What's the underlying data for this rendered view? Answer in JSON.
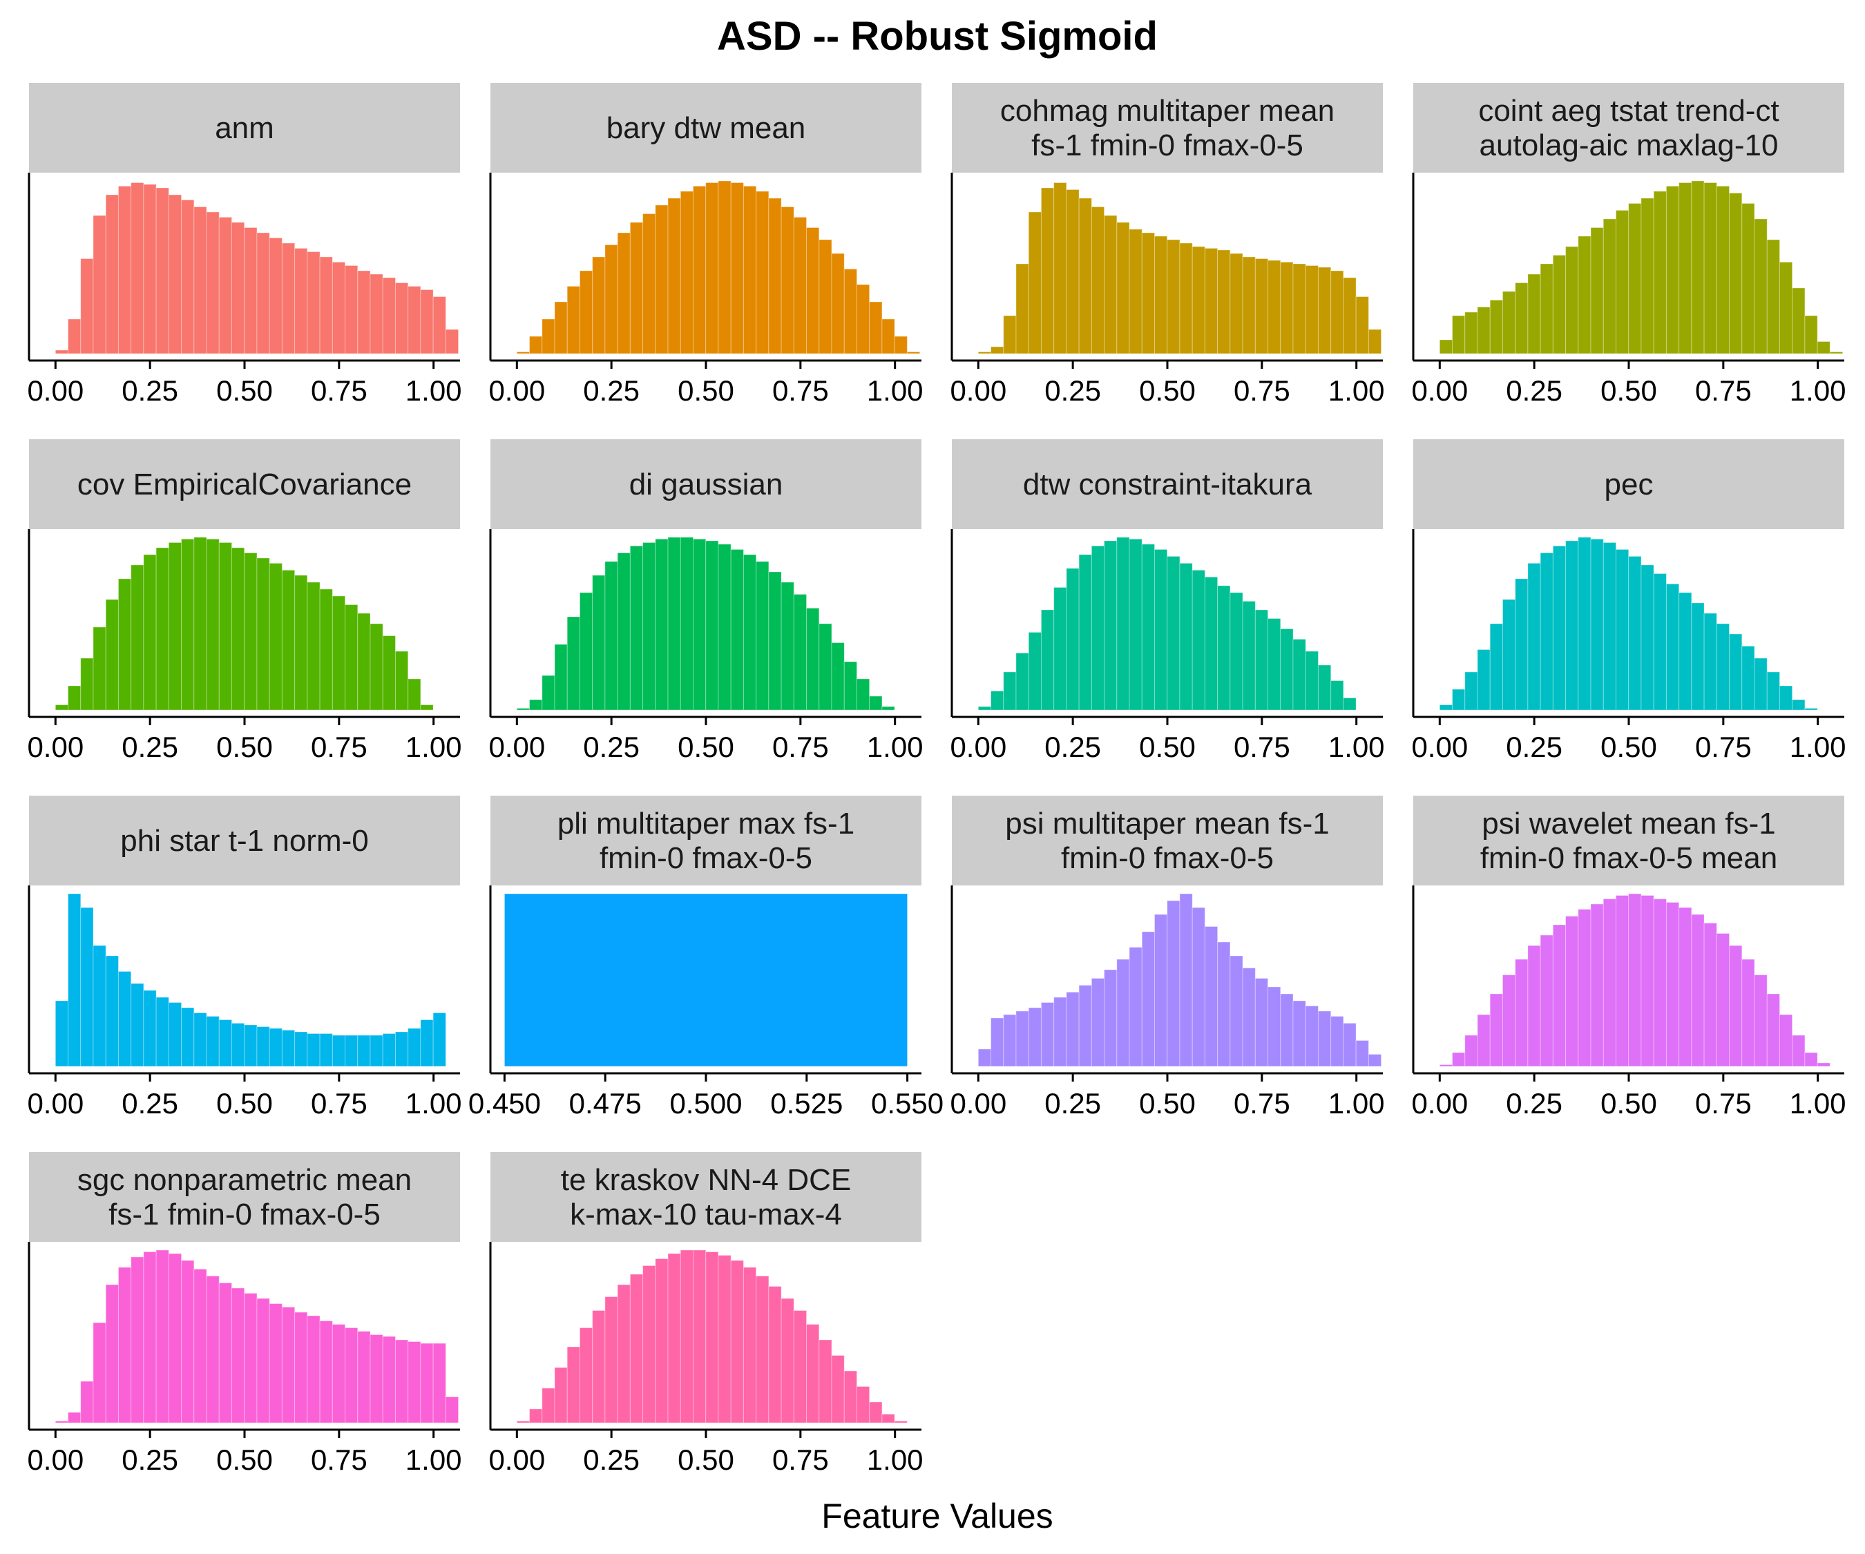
{
  "chart_data": {
    "type": "bar",
    "title": "ASD -- Robust Sigmoid",
    "xlabel": "Feature Values",
    "ylabel": "",
    "panels": [
      {
        "label_lines": [
          "anm"
        ],
        "color": "#F8766D",
        "xlim": [
          -0.07,
          1.07
        ],
        "ticks": [
          "0.00",
          "0.25",
          "0.50",
          "0.75",
          "1.00"
        ],
        "tick_values": [
          0,
          0.25,
          0.5,
          0.75,
          1
        ],
        "bin_start": 0.0,
        "bin_width": 0.0333,
        "values": [
          0.02,
          0.2,
          0.55,
          0.8,
          0.92,
          0.97,
          0.99,
          0.98,
          0.96,
          0.92,
          0.89,
          0.85,
          0.82,
          0.79,
          0.76,
          0.73,
          0.7,
          0.67,
          0.64,
          0.61,
          0.59,
          0.56,
          0.53,
          0.51,
          0.48,
          0.46,
          0.44,
          0.41,
          0.39,
          0.37,
          0.33,
          0.14
        ]
      },
      {
        "label_lines": [
          "bary dtw mean"
        ],
        "color": "#E38900",
        "xlim": [
          -0.07,
          1.07
        ],
        "ticks": [
          "0.00",
          "0.25",
          "0.50",
          "0.75",
          "1.00"
        ],
        "tick_values": [
          0,
          0.25,
          0.5,
          0.75,
          1
        ],
        "bin_start": 0.0,
        "bin_width": 0.0333,
        "values": [
          0.01,
          0.1,
          0.2,
          0.3,
          0.39,
          0.48,
          0.56,
          0.63,
          0.7,
          0.76,
          0.81,
          0.86,
          0.9,
          0.94,
          0.97,
          0.99,
          1.0,
          0.99,
          0.97,
          0.94,
          0.9,
          0.85,
          0.79,
          0.73,
          0.66,
          0.58,
          0.49,
          0.4,
          0.3,
          0.2,
          0.1,
          0.01
        ]
      },
      {
        "label_lines": [
          "cohmag multitaper mean",
          "fs-1 fmin-0 fmax-0-5"
        ],
        "color": "#C49A00",
        "xlim": [
          -0.07,
          1.07
        ],
        "ticks": [
          "0.00",
          "0.25",
          "0.50",
          "0.75",
          "1.00"
        ],
        "tick_values": [
          0,
          0.25,
          0.5,
          0.75,
          1
        ],
        "bin_start": 0.0,
        "bin_width": 0.0333,
        "values": [
          0.01,
          0.04,
          0.22,
          0.52,
          0.82,
          0.96,
          0.99,
          0.95,
          0.9,
          0.85,
          0.8,
          0.76,
          0.72,
          0.7,
          0.68,
          0.66,
          0.64,
          0.62,
          0.61,
          0.6,
          0.58,
          0.56,
          0.55,
          0.54,
          0.53,
          0.52,
          0.51,
          0.5,
          0.48,
          0.44,
          0.33,
          0.14
        ]
      },
      {
        "label_lines": [
          "coint aeg tstat trend-ct",
          "autolag-aic maxlag-10"
        ],
        "color": "#99A800",
        "xlim": [
          -0.07,
          1.07
        ],
        "ticks": [
          "0.00",
          "0.25",
          "0.50",
          "0.75",
          "1.00"
        ],
        "tick_values": [
          0,
          0.25,
          0.5,
          0.75,
          1
        ],
        "bin_start": 0.0,
        "bin_width": 0.0333,
        "values": [
          0.08,
          0.22,
          0.24,
          0.27,
          0.31,
          0.36,
          0.41,
          0.46,
          0.52,
          0.57,
          0.62,
          0.68,
          0.73,
          0.78,
          0.83,
          0.87,
          0.9,
          0.94,
          0.97,
          0.99,
          1.0,
          0.99,
          0.97,
          0.93,
          0.87,
          0.78,
          0.66,
          0.53,
          0.38,
          0.22,
          0.07,
          0.01
        ]
      },
      {
        "label_lines": [
          "cov EmpiricalCovariance"
        ],
        "color": "#53B400",
        "xlim": [
          -0.07,
          1.07
        ],
        "ticks": [
          "0.00",
          "0.25",
          "0.50",
          "0.75",
          "1.00"
        ],
        "tick_values": [
          0,
          0.25,
          0.5,
          0.75,
          1
        ],
        "bin_start": 0.0,
        "bin_width": 0.0333,
        "values": [
          0.03,
          0.14,
          0.3,
          0.48,
          0.64,
          0.76,
          0.84,
          0.9,
          0.94,
          0.97,
          0.99,
          1.0,
          0.99,
          0.97,
          0.94,
          0.91,
          0.88,
          0.85,
          0.81,
          0.78,
          0.74,
          0.7,
          0.66,
          0.61,
          0.56,
          0.5,
          0.43,
          0.34,
          0.18,
          0.03
        ]
      },
      {
        "label_lines": [
          "di gaussian"
        ],
        "color": "#00BC56",
        "xlim": [
          -0.07,
          1.07
        ],
        "ticks": [
          "0.00",
          "0.25",
          "0.50",
          "0.75",
          "1.00"
        ],
        "tick_values": [
          0,
          0.25,
          0.5,
          0.75,
          1
        ],
        "bin_start": 0.0,
        "bin_width": 0.0333,
        "values": [
          0.01,
          0.06,
          0.2,
          0.38,
          0.54,
          0.68,
          0.78,
          0.86,
          0.91,
          0.95,
          0.97,
          0.99,
          1.0,
          1.0,
          0.99,
          0.98,
          0.96,
          0.93,
          0.9,
          0.86,
          0.8,
          0.74,
          0.67,
          0.59,
          0.5,
          0.39,
          0.28,
          0.18,
          0.08,
          0.02
        ]
      },
      {
        "label_lines": [
          "dtw constraint-itakura"
        ],
        "color": "#00C094",
        "xlim": [
          -0.07,
          1.07
        ],
        "ticks": [
          "0.00",
          "0.25",
          "0.50",
          "0.75",
          "1.00"
        ],
        "tick_values": [
          0,
          0.25,
          0.5,
          0.75,
          1
        ],
        "bin_start": 0.0,
        "bin_width": 0.0333,
        "values": [
          0.02,
          0.11,
          0.22,
          0.33,
          0.45,
          0.58,
          0.71,
          0.82,
          0.9,
          0.95,
          0.98,
          1.0,
          0.99,
          0.96,
          0.93,
          0.89,
          0.85,
          0.81,
          0.77,
          0.72,
          0.68,
          0.63,
          0.58,
          0.53,
          0.47,
          0.41,
          0.34,
          0.26,
          0.17,
          0.07
        ]
      },
      {
        "label_lines": [
          "pec"
        ],
        "color": "#00BFC4",
        "xlim": [
          -0.07,
          1.07
        ],
        "ticks": [
          "0.00",
          "0.25",
          "0.50",
          "0.75",
          "1.00"
        ],
        "tick_values": [
          0,
          0.25,
          0.5,
          0.75,
          1
        ],
        "bin_start": 0.0,
        "bin_width": 0.0333,
        "values": [
          0.03,
          0.12,
          0.22,
          0.35,
          0.5,
          0.64,
          0.76,
          0.85,
          0.91,
          0.95,
          0.98,
          1.0,
          0.99,
          0.97,
          0.93,
          0.89,
          0.84,
          0.79,
          0.73,
          0.68,
          0.62,
          0.56,
          0.5,
          0.44,
          0.37,
          0.3,
          0.22,
          0.14,
          0.06,
          0.01
        ]
      },
      {
        "label_lines": [
          "phi star t-1 norm-0"
        ],
        "color": "#00B6EB",
        "xlim": [
          -0.07,
          1.07
        ],
        "ticks": [
          "0.00",
          "0.25",
          "0.50",
          "0.75",
          "1.00"
        ],
        "tick_values": [
          0,
          0.25,
          0.5,
          0.75,
          1
        ],
        "bin_start": 0.0,
        "bin_width": 0.0333,
        "values": [
          0.38,
          1.0,
          0.92,
          0.7,
          0.64,
          0.55,
          0.48,
          0.44,
          0.4,
          0.37,
          0.34,
          0.31,
          0.29,
          0.27,
          0.25,
          0.24,
          0.23,
          0.22,
          0.21,
          0.2,
          0.19,
          0.19,
          0.18,
          0.18,
          0.18,
          0.18,
          0.19,
          0.2,
          0.22,
          0.27,
          0.31
        ]
      },
      {
        "label_lines": [
          "pli multitaper max fs-1",
          "fmin-0 fmax-0-5"
        ],
        "color": "#06A4FF",
        "xlim": [
          0.4465,
          0.5535
        ],
        "ticks": [
          "0.450",
          "0.475",
          "0.500",
          "0.525",
          "0.550"
        ],
        "tick_values": [
          0.45,
          0.475,
          0.5,
          0.525,
          0.55
        ],
        "bin_start": 0.45,
        "bin_width": 0.1,
        "values": [
          1.0
        ]
      },
      {
        "label_lines": [
          "psi multitaper mean fs-1",
          "fmin-0 fmax-0-5"
        ],
        "color": "#A58AFF",
        "xlim": [
          -0.07,
          1.07
        ],
        "ticks": [
          "0.00",
          "0.25",
          "0.50",
          "0.75",
          "1.00"
        ],
        "tick_values": [
          0,
          0.25,
          0.5,
          0.75,
          1
        ],
        "bin_start": 0.0,
        "bin_width": 0.0333,
        "values": [
          0.1,
          0.28,
          0.3,
          0.32,
          0.34,
          0.37,
          0.4,
          0.43,
          0.47,
          0.51,
          0.56,
          0.62,
          0.69,
          0.78,
          0.88,
          0.96,
          1.0,
          0.92,
          0.81,
          0.72,
          0.64,
          0.57,
          0.51,
          0.46,
          0.42,
          0.38,
          0.35,
          0.32,
          0.29,
          0.25,
          0.15,
          0.07
        ]
      },
      {
        "label_lines": [
          "psi wavelet mean fs-1",
          "fmin-0 fmax-0-5 mean"
        ],
        "color": "#DF70F8",
        "xlim": [
          -0.07,
          1.07
        ],
        "ticks": [
          "0.00",
          "0.25",
          "0.50",
          "0.75",
          "1.00"
        ],
        "tick_values": [
          0,
          0.25,
          0.5,
          0.75,
          1
        ],
        "bin_start": 0.0,
        "bin_width": 0.0333,
        "values": [
          0.01,
          0.08,
          0.18,
          0.3,
          0.42,
          0.53,
          0.62,
          0.7,
          0.76,
          0.82,
          0.87,
          0.91,
          0.94,
          0.97,
          0.99,
          1.0,
          0.99,
          0.97,
          0.95,
          0.92,
          0.88,
          0.83,
          0.77,
          0.7,
          0.62,
          0.53,
          0.42,
          0.3,
          0.18,
          0.08,
          0.02
        ]
      },
      {
        "label_lines": [
          "sgc nonparametric mean",
          "fs-1 fmin-0 fmax-0-5"
        ],
        "color": "#FB61D7",
        "xlim": [
          -0.07,
          1.07
        ],
        "ticks": [
          "0.00",
          "0.25",
          "0.50",
          "0.75",
          "1.00"
        ],
        "tick_values": [
          0,
          0.25,
          0.5,
          0.75,
          1
        ],
        "bin_start": 0.0,
        "bin_width": 0.0333,
        "values": [
          0.01,
          0.06,
          0.24,
          0.58,
          0.8,
          0.9,
          0.96,
          0.99,
          1.0,
          0.98,
          0.94,
          0.89,
          0.85,
          0.81,
          0.78,
          0.75,
          0.72,
          0.69,
          0.67,
          0.64,
          0.62,
          0.59,
          0.57,
          0.55,
          0.53,
          0.51,
          0.5,
          0.48,
          0.47,
          0.46,
          0.46,
          0.15
        ]
      },
      {
        "label_lines": [
          "te kraskov NN-4 DCE",
          "k-max-10 tau-max-4"
        ],
        "color": "#FF66A8",
        "xlim": [
          -0.07,
          1.07
        ],
        "ticks": [
          "0.00",
          "0.25",
          "0.50",
          "0.75",
          "1.00"
        ],
        "tick_values": [
          0,
          0.25,
          0.5,
          0.75,
          1
        ],
        "bin_start": 0.0,
        "bin_width": 0.0333,
        "values": [
          0.01,
          0.08,
          0.2,
          0.32,
          0.44,
          0.55,
          0.65,
          0.73,
          0.8,
          0.86,
          0.91,
          0.95,
          0.98,
          1.0,
          1.0,
          0.99,
          0.97,
          0.94,
          0.9,
          0.85,
          0.79,
          0.72,
          0.65,
          0.57,
          0.48,
          0.39,
          0.3,
          0.21,
          0.12,
          0.05,
          0.01
        ]
      }
    ]
  }
}
